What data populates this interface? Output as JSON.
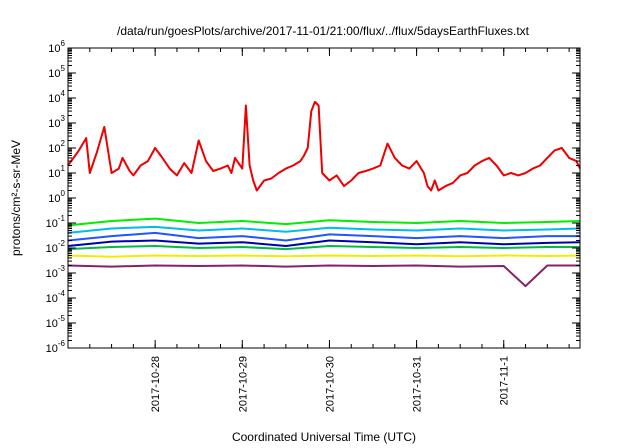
{
  "chart_data": {
    "type": "line",
    "title": "/data/run/goesPlots/archive/2017-11-01/21:00/flux/../flux/5daysEarthFluxes.txt",
    "xlabel": "Coordinated Universal Time (UTC)",
    "ylabel": "protons/cm²-s-sr-MeV",
    "yscale": "log",
    "ylim": [
      1e-06,
      1000000.0
    ],
    "xlim": [
      "2017-10-27T00:00",
      "2017-11-01T21:00"
    ],
    "x_ticks": [
      "2017-10-28",
      "2017-10-29",
      "2017-10-30",
      "2017-10-31",
      "2017-11-1"
    ],
    "y_ticks": [
      {
        "value": 1e-06,
        "base": "10",
        "exp": "-6"
      },
      {
        "value": 1e-05,
        "base": "10",
        "exp": "-5"
      },
      {
        "value": 0.0001,
        "base": "10",
        "exp": "-4"
      },
      {
        "value": 0.001,
        "base": "10",
        "exp": "-3"
      },
      {
        "value": 0.01,
        "base": "10",
        "exp": "-2"
      },
      {
        "value": 0.1,
        "base": "10",
        "exp": "-1"
      },
      {
        "value": 1,
        "base": "10",
        "exp": "0"
      },
      {
        "value": 10,
        "base": "10",
        "exp": "1"
      },
      {
        "value": 100,
        "base": "10",
        "exp": "2"
      },
      {
        "value": 1000,
        "base": "10",
        "exp": "3"
      },
      {
        "value": 10000,
        "base": "10",
        "exp": "4"
      },
      {
        "value": 100000,
        "base": "10",
        "exp": "5"
      },
      {
        "value": 1000000,
        "base": "10",
        "exp": "6"
      }
    ],
    "grid": false,
    "legend": "none",
    "series": [
      {
        "color": "#ee0000",
        "x": [
          "2017-10-27T00:00",
          "2017-10-27T03:00",
          "2017-10-27T05:00",
          "2017-10-27T06:00",
          "2017-10-27T08:00",
          "2017-10-27T10:00",
          "2017-10-27T12:00",
          "2017-10-27T14:00",
          "2017-10-27T15:00",
          "2017-10-27T17:00",
          "2017-10-27T18:00",
          "2017-10-27T20:00",
          "2017-10-27T22:00",
          "2017-10-28T00:00",
          "2017-10-28T02:00",
          "2017-10-28T04:00",
          "2017-10-28T06:00",
          "2017-10-28T08:00",
          "2017-10-28T10:00",
          "2017-10-28T12:00",
          "2017-10-28T14:00",
          "2017-10-28T16:00",
          "2017-10-28T18:00",
          "2017-10-28T20:00",
          "2017-10-28T21:00",
          "2017-10-28T22:00",
          "2017-10-29T00:00",
          "2017-10-29T01:00",
          "2017-10-29T02:00",
          "2017-10-29T03:00",
          "2017-10-29T04:00",
          "2017-10-29T06:00",
          "2017-10-29T08:00",
          "2017-10-29T10:00",
          "2017-10-29T12:00",
          "2017-10-29T14:00",
          "2017-10-29T16:00",
          "2017-10-29T17:00",
          "2017-10-29T18:00",
          "2017-10-29T19:00",
          "2017-10-29T20:00",
          "2017-10-29T21:00",
          "2017-10-29T22:00",
          "2017-10-30T00:00",
          "2017-10-30T02:00",
          "2017-10-30T04:00",
          "2017-10-30T06:00",
          "2017-10-30T08:00",
          "2017-10-30T10:00",
          "2017-10-30T12:00",
          "2017-10-30T14:00",
          "2017-10-30T16:00",
          "2017-10-30T18:00",
          "2017-10-30T20:00",
          "2017-10-30T22:00",
          "2017-10-31T00:00",
          "2017-10-31T02:00",
          "2017-10-31T03:00",
          "2017-10-31T04:00",
          "2017-10-31T05:00",
          "2017-10-31T06:00",
          "2017-10-31T08:00",
          "2017-10-31T10:00",
          "2017-10-31T12:00",
          "2017-10-31T14:00",
          "2017-10-31T16:00",
          "2017-10-31T18:00",
          "2017-10-31T20:00",
          "2017-10-31T22:00",
          "2017-11-01T00:00",
          "2017-11-01T02:00",
          "2017-11-01T04:00",
          "2017-11-01T06:00",
          "2017-11-01T08:00",
          "2017-11-01T10:00",
          "2017-11-01T12:00",
          "2017-11-01T14:00",
          "2017-11-01T16:00",
          "2017-11-01T18:00",
          "2017-11-01T20:00",
          "2017-11-01T21:00"
        ],
        "values": [
          20,
          80,
          250,
          10,
          70,
          700,
          10,
          15,
          40,
          12,
          8,
          20,
          30,
          100,
          40,
          15,
          8,
          25,
          10,
          200,
          30,
          12,
          15,
          20,
          10,
          40,
          15,
          5000,
          20,
          5,
          2,
          5,
          6,
          10,
          15,
          20,
          30,
          50,
          100,
          3000,
          7000,
          5000,
          10,
          5,
          8,
          3,
          5,
          10,
          12,
          15,
          20,
          150,
          40,
          20,
          15,
          30,
          10,
          3,
          2,
          5,
          2,
          3,
          4,
          8,
          10,
          20,
          30,
          40,
          20,
          8,
          10,
          8,
          10,
          15,
          20,
          40,
          80,
          100,
          40,
          30,
          15
        ]
      },
      {
        "color": "#00ee00",
        "x": [
          "2017-10-27T00:00",
          "2017-10-27T12:00",
          "2017-10-28T00:00",
          "2017-10-28T12:00",
          "2017-10-29T00:00",
          "2017-10-29T12:00",
          "2017-10-30T00:00",
          "2017-10-30T12:00",
          "2017-10-31T00:00",
          "2017-10-31T12:00",
          "2017-11-01T00:00",
          "2017-11-01T12:00",
          "2017-11-01T21:00"
        ],
        "values": [
          0.08,
          0.12,
          0.15,
          0.1,
          0.12,
          0.09,
          0.13,
          0.11,
          0.1,
          0.12,
          0.1,
          0.11,
          0.12
        ]
      },
      {
        "color": "#00bbee",
        "x": [
          "2017-10-27T00:00",
          "2017-10-27T12:00",
          "2017-10-28T00:00",
          "2017-10-28T12:00",
          "2017-10-29T00:00",
          "2017-10-29T12:00",
          "2017-10-30T00:00",
          "2017-10-30T12:00",
          "2017-10-31T00:00",
          "2017-10-31T12:00",
          "2017-11-01T00:00",
          "2017-11-01T12:00",
          "2017-11-01T21:00"
        ],
        "values": [
          0.04,
          0.06,
          0.07,
          0.05,
          0.06,
          0.045,
          0.065,
          0.055,
          0.05,
          0.06,
          0.05,
          0.055,
          0.06
        ]
      },
      {
        "color": "#2255ff",
        "x": [
          "2017-10-27T00:00",
          "2017-10-27T12:00",
          "2017-10-28T00:00",
          "2017-10-28T12:00",
          "2017-10-29T00:00",
          "2017-10-29T12:00",
          "2017-10-30T00:00",
          "2017-10-30T12:00",
          "2017-10-31T00:00",
          "2017-10-31T12:00",
          "2017-11-01T00:00",
          "2017-11-01T12:00",
          "2017-11-01T21:00"
        ],
        "values": [
          0.02,
          0.03,
          0.04,
          0.025,
          0.03,
          0.02,
          0.035,
          0.03,
          0.025,
          0.03,
          0.025,
          0.03,
          0.03
        ]
      },
      {
        "color": "#0000aa",
        "x": [
          "2017-10-27T00:00",
          "2017-10-27T12:00",
          "2017-10-28T00:00",
          "2017-10-28T12:00",
          "2017-10-29T00:00",
          "2017-10-29T12:00",
          "2017-10-30T00:00",
          "2017-10-30T12:00",
          "2017-10-31T00:00",
          "2017-10-31T12:00",
          "2017-11-01T00:00",
          "2017-11-01T12:00",
          "2017-11-01T21:00"
        ],
        "values": [
          0.012,
          0.018,
          0.02,
          0.015,
          0.017,
          0.012,
          0.02,
          0.017,
          0.014,
          0.017,
          0.014,
          0.016,
          0.017
        ]
      },
      {
        "color": "#00bb44",
        "x": [
          "2017-10-27T00:00",
          "2017-10-27T12:00",
          "2017-10-28T00:00",
          "2017-10-28T12:00",
          "2017-10-29T00:00",
          "2017-10-29T12:00",
          "2017-10-30T00:00",
          "2017-10-30T12:00",
          "2017-10-31T00:00",
          "2017-10-31T12:00",
          "2017-11-01T00:00",
          "2017-11-01T12:00",
          "2017-11-01T21:00"
        ],
        "values": [
          0.009,
          0.011,
          0.012,
          0.01,
          0.011,
          0.009,
          0.012,
          0.011,
          0.01,
          0.011,
          0.01,
          0.011,
          0.011
        ]
      },
      {
        "color": "#eeee00",
        "x": [
          "2017-10-27T00:00",
          "2017-10-27T12:00",
          "2017-10-28T00:00",
          "2017-10-28T12:00",
          "2017-10-29T00:00",
          "2017-10-29T12:00",
          "2017-10-30T00:00",
          "2017-10-30T12:00",
          "2017-10-31T00:00",
          "2017-10-31T12:00",
          "2017-11-01T00:00",
          "2017-11-01T12:00",
          "2017-11-01T21:00"
        ],
        "values": [
          0.005,
          0.0045,
          0.005,
          0.0048,
          0.005,
          0.0047,
          0.005,
          0.0048,
          0.005,
          0.0047,
          0.005,
          0.0048,
          0.005
        ]
      },
      {
        "color": "#882266",
        "x": [
          "2017-10-27T00:00",
          "2017-10-27T12:00",
          "2017-10-28T00:00",
          "2017-10-28T12:00",
          "2017-10-29T00:00",
          "2017-10-29T12:00",
          "2017-10-30T00:00",
          "2017-10-30T12:00",
          "2017-10-31T00:00",
          "2017-10-31T12:00",
          "2017-11-01T00:00",
          "2017-11-01T06:00",
          "2017-11-01T12:00",
          "2017-11-01T21:00"
        ],
        "values": [
          0.002,
          0.0018,
          0.002,
          0.0019,
          0.002,
          0.0018,
          0.002,
          0.0019,
          0.002,
          0.0018,
          0.0019,
          0.0003,
          0.002,
          0.002
        ]
      }
    ]
  }
}
